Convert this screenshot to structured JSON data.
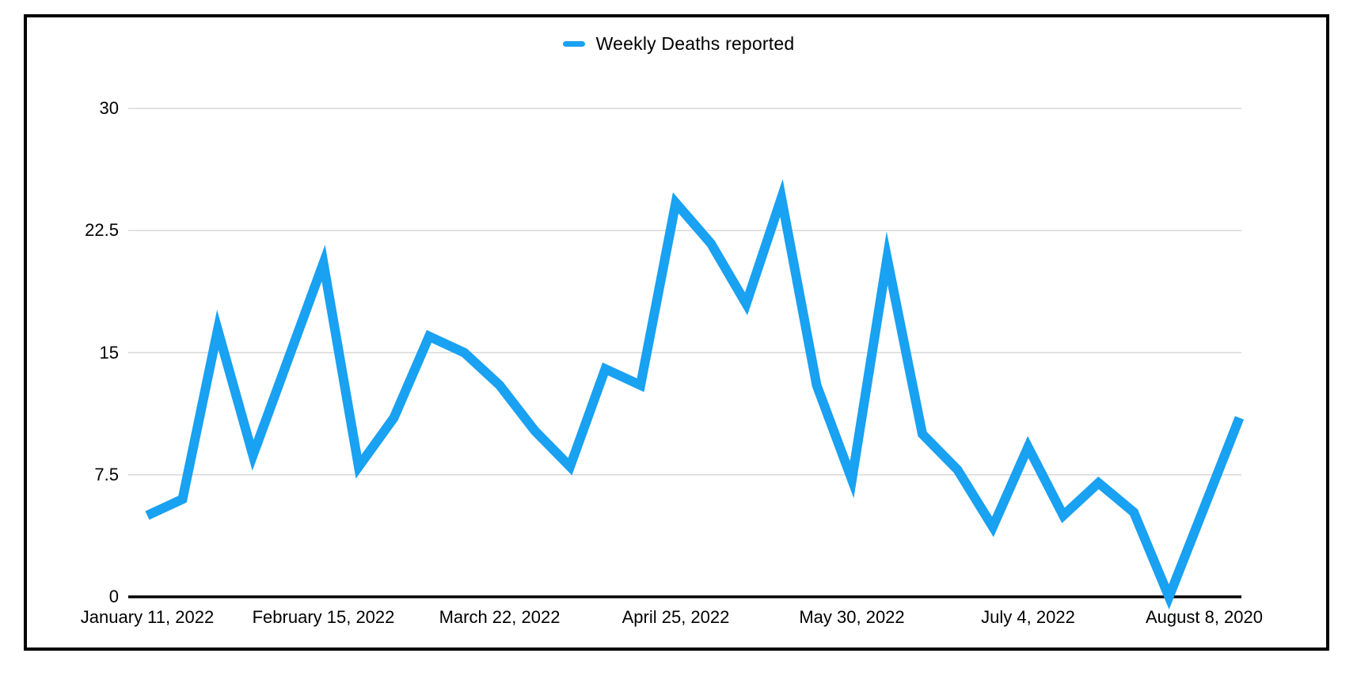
{
  "chart_data": {
    "type": "line",
    "title": "",
    "legend": {
      "label": "Weekly Deaths reported",
      "position": "top-center"
    },
    "series": [
      {
        "name": "Weekly Deaths reported",
        "color": "#19A1F2",
        "values": [
          5,
          6,
          16.4,
          8.7,
          14.6,
          20.5,
          8,
          11,
          16,
          15,
          13,
          10.2,
          8,
          14,
          13,
          24.2,
          21.7,
          18,
          24.5,
          13,
          7.2,
          20.8,
          10,
          7.8,
          4.3,
          9.2,
          5,
          7,
          5.2,
          0,
          5.5,
          11
        ]
      }
    ],
    "x_axis": {
      "tick_labels": [
        "January 11, 2022",
        "February 15, 2022",
        "March 22, 2022",
        "April 25, 2022",
        "May 30, 2022",
        "July 4, 2022",
        "August 8, 2020"
      ],
      "ticks_every_n_points": 5
    },
    "y_axis": {
      "ticks": [
        0,
        7.5,
        15,
        22.5,
        30
      ],
      "range": [
        0,
        30
      ]
    },
    "grid": {
      "horizontal": true,
      "color": "#D9D9D9"
    },
    "colors": {
      "line": "#19A1F2",
      "axis": "#000000",
      "text": "#000000",
      "frame_border": "#000000",
      "background": "#FFFFFF"
    }
  }
}
